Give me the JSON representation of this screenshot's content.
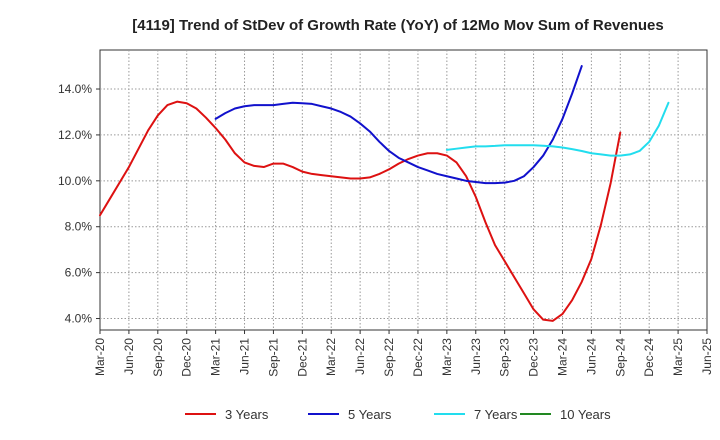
{
  "chart_data": {
    "type": "line",
    "title": "[4119]  Trend of StDev of Growth Rate (YoY) of 12Mo Mov Sum of Revenues",
    "xlabel": "",
    "ylabel": "",
    "x_ticks": [
      "Mar-20",
      "Jun-20",
      "Sep-20",
      "Dec-20",
      "Mar-21",
      "Jun-21",
      "Sep-21",
      "Dec-21",
      "Mar-22",
      "Jun-22",
      "Sep-22",
      "Dec-22",
      "Mar-23",
      "Jun-23",
      "Sep-23",
      "Dec-23",
      "Mar-24",
      "Jun-24",
      "Sep-24",
      "Dec-24",
      "Mar-25",
      "Jun-25"
    ],
    "y_ticks": [
      "4.0%",
      "6.0%",
      "8.0%",
      "10.0%",
      "12.0%",
      "14.0%"
    ],
    "y_tick_values": [
      4,
      6,
      8,
      10,
      12,
      14
    ],
    "ylim": [
      3.5,
      15.7
    ],
    "x_index_range": [
      0,
      63
    ],
    "grid": true,
    "legend_position": "bottom",
    "series": [
      {
        "name": "3 Years",
        "color": "#dd1111",
        "start_index": 0,
        "values": [
          8.5,
          9.2,
          9.9,
          10.6,
          11.4,
          12.2,
          12.85,
          13.3,
          13.45,
          13.38,
          13.15,
          12.75,
          12.3,
          11.8,
          11.2,
          10.8,
          10.65,
          10.6,
          10.75,
          10.75,
          10.6,
          10.4,
          10.3,
          10.25,
          10.2,
          10.15,
          10.1,
          10.1,
          10.15,
          10.3,
          10.5,
          10.75,
          10.95,
          11.1,
          11.2,
          11.2,
          11.1,
          10.8,
          10.2,
          9.3,
          8.2,
          7.2,
          6.5,
          5.8,
          5.1,
          4.4,
          3.95,
          3.9,
          4.2,
          4.8,
          5.6,
          6.6,
          8.1,
          9.9,
          12.1
        ]
      },
      {
        "name": "5 Years",
        "color": "#1111cc",
        "start_index": 12,
        "values": [
          12.7,
          12.95,
          13.15,
          13.25,
          13.3,
          13.3,
          13.3,
          13.35,
          13.4,
          13.38,
          13.35,
          13.25,
          13.15,
          13.0,
          12.8,
          12.5,
          12.15,
          11.7,
          11.3,
          11.0,
          10.8,
          10.6,
          10.45,
          10.3,
          10.2,
          10.1,
          10.0,
          9.95,
          9.9,
          9.9,
          9.92,
          10.0,
          10.2,
          10.6,
          11.1,
          11.8,
          12.7,
          13.8,
          15.0
        ]
      },
      {
        "name": "7 Years",
        "color": "#22ddee",
        "start_index": 36,
        "values": [
          11.35,
          11.4,
          11.45,
          11.5,
          11.5,
          11.52,
          11.55,
          11.55,
          11.55,
          11.55,
          11.53,
          11.5,
          11.45,
          11.38,
          11.3,
          11.2,
          11.15,
          11.1,
          11.1,
          11.15,
          11.3,
          11.7,
          12.4,
          13.4
        ]
      },
      {
        "name": "10 Years",
        "color": "#228822",
        "start_index": 0,
        "values": []
      }
    ]
  }
}
